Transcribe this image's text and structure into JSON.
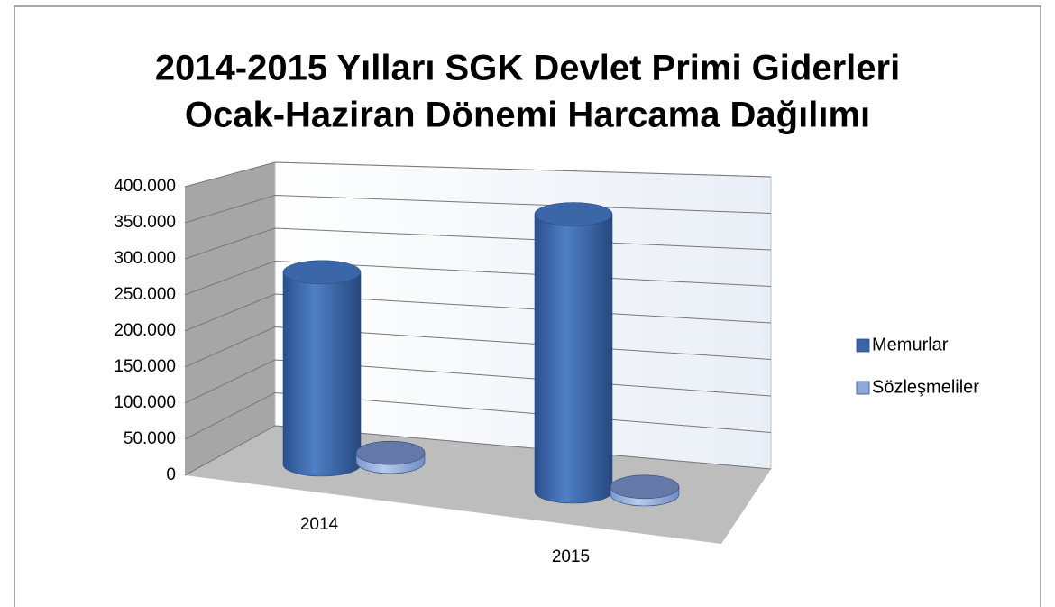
{
  "chart_data": {
    "type": "bar3d",
    "title": [
      "2014-2015 Yılları SGK Devlet Primi Giderleri",
      "Ocak-Haziran Dönemi Harcama Dağılımı"
    ],
    "categories": [
      "2014",
      "2015"
    ],
    "series": [
      {
        "name": "Memurlar",
        "color": "#3a65a8",
        "values": [
          260000,
          375000
        ]
      },
      {
        "name": "Sözleşmeliler",
        "color": "#8eaadb",
        "values": [
          12000,
          10000
        ]
      }
    ],
    "ylim": [
      0,
      400000
    ],
    "yticks": [
      0,
      {
        "value": 50000,
        "label": "50.000"
      },
      {
        "value": 100000,
        "label": "100.000"
      },
      {
        "value": 150000,
        "label": "150.000"
      },
      {
        "value": 200000,
        "label": "200.000"
      },
      {
        "value": 250000,
        "label": "250.000"
      },
      {
        "value": 300000,
        "label": "300.000"
      },
      {
        "value": 350000,
        "label": "350.000"
      },
      {
        "value": 400000,
        "label": "400.000"
      }
    ],
    "grid": true,
    "legend": "right"
  }
}
